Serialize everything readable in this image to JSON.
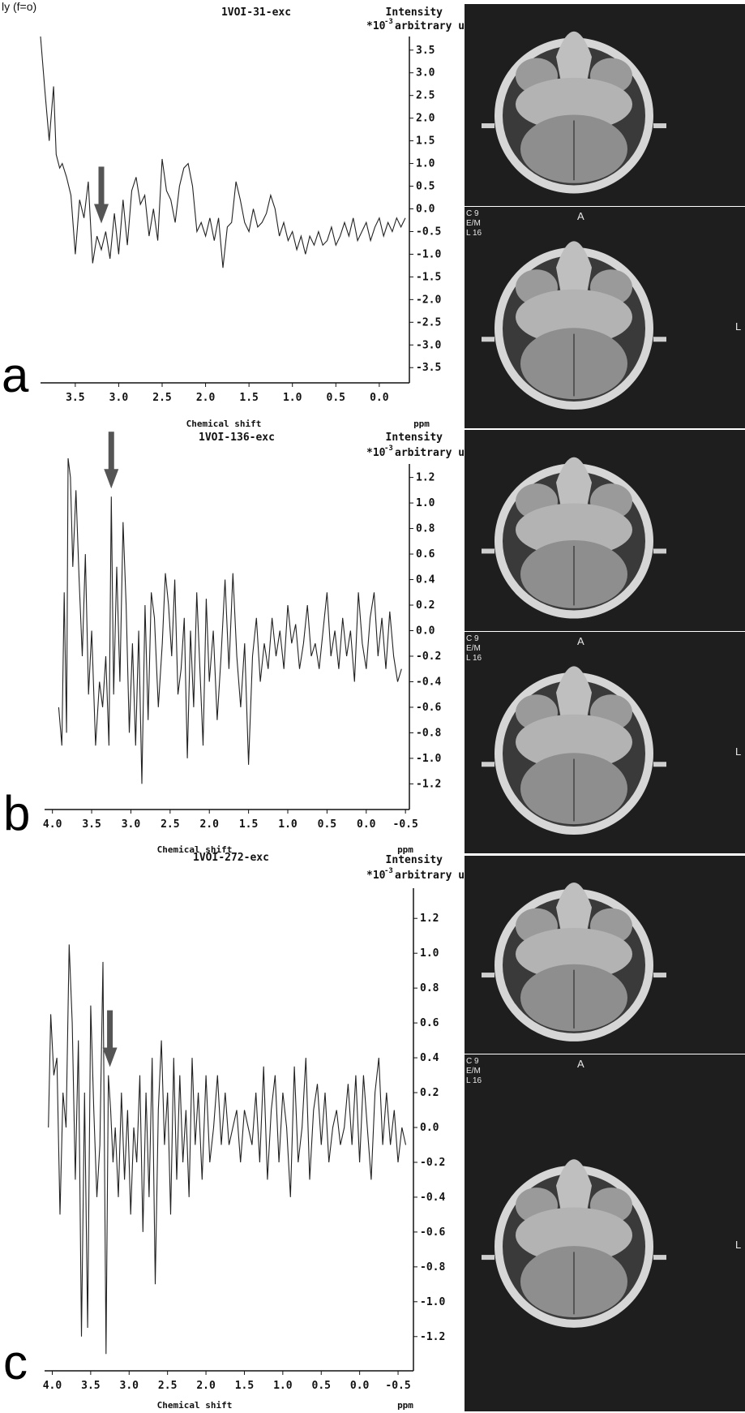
{
  "figure": {
    "header_cut": "ly (f=o)",
    "intensity_label": "Intensity",
    "unit_prefix": "*10",
    "unit_exp": "-3",
    "unit_label": "arbitrary unit",
    "xlabel": "Chemical shift",
    "xunit": "ppm",
    "mri_side_letter": "L",
    "mri_top_letter": "A",
    "mri_overlay_lines": [
      "C 9",
      "E/M",
      "L 16"
    ],
    "accent_color": "#555555",
    "icons": [
      "arrow-down-icon"
    ]
  },
  "chart_data": [
    {
      "type": "line",
      "panel": "a",
      "title": "1VOI-31-exc",
      "xlim": [
        3.9,
        -0.3
      ],
      "ylim": [
        -3.8,
        3.8
      ],
      "x_ticks": [
        "3.5",
        "3.0",
        "2.5",
        "2.0",
        "1.5",
        "1.0",
        "0.5",
        "0.0"
      ],
      "x_tick_values": [
        3.5,
        3.0,
        2.5,
        2.0,
        1.5,
        1.0,
        0.5,
        0.0
      ],
      "y_ticks": [
        "3.5",
        "3.0",
        "2.5",
        "2.0",
        "1.5",
        "1.0",
        "0.5",
        "0.0",
        "-0.5",
        "-1.0",
        "-1.5",
        "-2.0",
        "-2.5",
        "-3.0",
        "-3.5"
      ],
      "y_tick_values": [
        3.5,
        3.0,
        2.5,
        2.0,
        1.5,
        1.0,
        0.5,
        0.0,
        -0.5,
        -1.0,
        -1.5,
        -2.0,
        -2.5,
        -3.0,
        -3.5
      ],
      "arrow_x": 3.2,
      "x": [
        3.9,
        3.85,
        3.8,
        3.75,
        3.72,
        3.68,
        3.65,
        3.6,
        3.55,
        3.5,
        3.45,
        3.4,
        3.35,
        3.3,
        3.25,
        3.2,
        3.15,
        3.1,
        3.05,
        3.0,
        2.95,
        2.9,
        2.85,
        2.8,
        2.75,
        2.7,
        2.65,
        2.6,
        2.55,
        2.5,
        2.45,
        2.4,
        2.35,
        2.3,
        2.25,
        2.2,
        2.15,
        2.1,
        2.05,
        2.0,
        1.95,
        1.9,
        1.85,
        1.8,
        1.75,
        1.7,
        1.65,
        1.6,
        1.55,
        1.5,
        1.45,
        1.4,
        1.35,
        1.3,
        1.25,
        1.2,
        1.15,
        1.1,
        1.05,
        1.0,
        0.95,
        0.9,
        0.85,
        0.8,
        0.75,
        0.7,
        0.65,
        0.6,
        0.55,
        0.5,
        0.45,
        0.4,
        0.35,
        0.3,
        0.25,
        0.2,
        0.15,
        0.1,
        0.05,
        0.0,
        -0.05,
        -0.1,
        -0.15,
        -0.2,
        -0.25,
        -0.3
      ],
      "y": [
        3.8,
        2.6,
        1.5,
        2.7,
        1.2,
        0.9,
        1.0,
        0.7,
        0.3,
        -1.0,
        0.2,
        -0.2,
        0.6,
        -1.2,
        -0.6,
        -0.9,
        -0.5,
        -1.1,
        -0.1,
        -1.0,
        0.2,
        -0.8,
        0.4,
        0.7,
        0.1,
        0.3,
        -0.6,
        0.0,
        -0.7,
        1.1,
        0.4,
        0.2,
        -0.3,
        0.5,
        0.9,
        1.0,
        0.5,
        -0.5,
        -0.3,
        -0.6,
        -0.2,
        -0.7,
        -0.2,
        -1.3,
        -0.4,
        -0.3,
        0.6,
        0.2,
        -0.3,
        -0.5,
        0.0,
        -0.4,
        -0.3,
        -0.1,
        0.3,
        0.0,
        -0.6,
        -0.3,
        -0.7,
        -0.5,
        -0.9,
        -0.6,
        -1.0,
        -0.6,
        -0.8,
        -0.5,
        -0.8,
        -0.7,
        -0.4,
        -0.8,
        -0.6,
        -0.3,
        -0.6,
        -0.2,
        -0.7,
        -0.5,
        -0.3,
        -0.7,
        -0.4,
        -0.2,
        -0.6,
        -0.3,
        -0.5,
        -0.2,
        -0.4,
        -0.2
      ]
    },
    {
      "type": "line",
      "panel": "b",
      "title": "1VOI-136-exc",
      "xlim": [
        4.1,
        -0.55
      ],
      "ylim": [
        -1.35,
        1.35
      ],
      "x_ticks": [
        "4.0",
        "3.5",
        "3.0",
        "2.5",
        "2.0",
        "1.5",
        "1.0",
        "0.5",
        "0.0",
        "-0.5"
      ],
      "x_tick_values": [
        4.0,
        3.5,
        3.0,
        2.5,
        2.0,
        1.5,
        1.0,
        0.5,
        0.0,
        -0.5
      ],
      "y_ticks": [
        "1.2",
        "1.0",
        "0.8",
        "0.6",
        "0.4",
        "0.2",
        "0.0",
        "-0.2",
        "-0.4",
        "-0.6",
        "-0.8",
        "-1.0",
        "-1.2"
      ],
      "y_tick_values": [
        1.2,
        1.0,
        0.8,
        0.6,
        0.4,
        0.2,
        0.0,
        -0.2,
        -0.4,
        -0.6,
        -0.8,
        -1.0,
        -1.2
      ],
      "arrow_x": 3.25,
      "x": [
        3.92,
        3.88,
        3.85,
        3.82,
        3.8,
        3.77,
        3.74,
        3.7,
        3.66,
        3.62,
        3.58,
        3.54,
        3.5,
        3.45,
        3.4,
        3.36,
        3.32,
        3.28,
        3.25,
        3.22,
        3.18,
        3.14,
        3.1,
        3.06,
        3.02,
        2.98,
        2.94,
        2.9,
        2.86,
        2.82,
        2.78,
        2.74,
        2.7,
        2.65,
        2.6,
        2.56,
        2.52,
        2.48,
        2.44,
        2.4,
        2.36,
        2.32,
        2.28,
        2.24,
        2.2,
        2.16,
        2.12,
        2.08,
        2.04,
        2.0,
        1.95,
        1.9,
        1.85,
        1.8,
        1.75,
        1.7,
        1.65,
        1.6,
        1.55,
        1.5,
        1.45,
        1.4,
        1.35,
        1.3,
        1.25,
        1.2,
        1.15,
        1.1,
        1.05,
        1.0,
        0.95,
        0.9,
        0.85,
        0.8,
        0.75,
        0.7,
        0.65,
        0.6,
        0.55,
        0.5,
        0.45,
        0.4,
        0.35,
        0.3,
        0.25,
        0.2,
        0.15,
        0.1,
        0.05,
        0.0,
        -0.05,
        -0.1,
        -0.15,
        -0.2,
        -0.25,
        -0.3,
        -0.35,
        -0.4,
        -0.45
      ],
      "y": [
        -0.6,
        -0.9,
        0.3,
        -0.8,
        1.35,
        1.2,
        0.5,
        1.1,
        0.4,
        -0.2,
        0.6,
        -0.5,
        0.0,
        -0.9,
        -0.4,
        -0.6,
        -0.2,
        -0.9,
        1.05,
        -0.5,
        0.5,
        -0.4,
        0.85,
        0.2,
        -0.8,
        -0.1,
        -0.9,
        0.0,
        -1.2,
        0.2,
        -0.7,
        0.3,
        0.1,
        -0.6,
        -0.1,
        0.45,
        0.2,
        -0.2,
        0.4,
        -0.5,
        -0.3,
        0.1,
        -1.0,
        0.0,
        -0.6,
        0.3,
        -0.3,
        -0.9,
        0.25,
        -0.4,
        0.0,
        -0.7,
        -0.2,
        0.4,
        -0.3,
        0.45,
        -0.2,
        -0.6,
        -0.1,
        -1.05,
        -0.2,
        0.1,
        -0.4,
        -0.1,
        -0.3,
        0.1,
        -0.2,
        0.0,
        -0.3,
        0.2,
        -0.1,
        0.05,
        -0.3,
        -0.1,
        0.2,
        -0.2,
        -0.1,
        -0.3,
        0.0,
        0.3,
        -0.2,
        0.0,
        -0.3,
        0.1,
        -0.2,
        0.0,
        -0.4,
        0.3,
        -0.1,
        -0.3,
        0.1,
        0.3,
        -0.2,
        0.1,
        -0.3,
        0.15,
        -0.2,
        -0.4,
        -0.3
      ]
    },
    {
      "type": "line",
      "panel": "c",
      "title": "1VOI-272-exc",
      "xlim": [
        4.1,
        -0.7
      ],
      "ylim": [
        -1.35,
        1.35
      ],
      "x_ticks": [
        "4.0",
        "3.5",
        "3.0",
        "2.5",
        "2.0",
        "1.5",
        "1.0",
        "0.5",
        "0.0",
        "-0.5"
      ],
      "x_tick_values": [
        4.0,
        3.5,
        3.0,
        2.5,
        2.0,
        1.5,
        1.0,
        0.5,
        0.0,
        -0.5
      ],
      "y_ticks": [
        "1.2",
        "1.0",
        "0.8",
        "0.6",
        "0.4",
        "0.2",
        "0.0",
        "-0.2",
        "-0.4",
        "-0.6",
        "-0.8",
        "-1.0",
        "-1.2"
      ],
      "y_tick_values": [
        1.2,
        1.0,
        0.8,
        0.6,
        0.4,
        0.2,
        0.0,
        -0.2,
        -0.4,
        -0.6,
        -0.8,
        -1.0,
        -1.2
      ],
      "arrow_x": 3.25,
      "x": [
        4.05,
        4.02,
        3.98,
        3.94,
        3.9,
        3.86,
        3.82,
        3.78,
        3.74,
        3.7,
        3.66,
        3.62,
        3.58,
        3.54,
        3.5,
        3.46,
        3.42,
        3.38,
        3.34,
        3.3,
        3.27,
        3.24,
        3.21,
        3.18,
        3.14,
        3.1,
        3.06,
        3.02,
        2.98,
        2.94,
        2.9,
        2.86,
        2.82,
        2.78,
        2.74,
        2.7,
        2.66,
        2.62,
        2.58,
        2.54,
        2.5,
        2.46,
        2.42,
        2.38,
        2.34,
        2.3,
        2.26,
        2.22,
        2.18,
        2.14,
        2.1,
        2.05,
        2.0,
        1.95,
        1.9,
        1.85,
        1.8,
        1.75,
        1.7,
        1.65,
        1.6,
        1.55,
        1.5,
        1.45,
        1.4,
        1.35,
        1.3,
        1.25,
        1.2,
        1.15,
        1.1,
        1.05,
        1.0,
        0.95,
        0.9,
        0.85,
        0.8,
        0.75,
        0.7,
        0.65,
        0.6,
        0.55,
        0.5,
        0.45,
        0.4,
        0.35,
        0.3,
        0.25,
        0.2,
        0.15,
        0.1,
        0.05,
        0.0,
        -0.05,
        -0.1,
        -0.15,
        -0.2,
        -0.25,
        -0.3,
        -0.35,
        -0.4,
        -0.45,
        -0.5,
        -0.55,
        -0.6
      ],
      "y": [
        0.0,
        0.65,
        0.3,
        0.4,
        -0.5,
        0.2,
        0.0,
        1.05,
        0.6,
        -0.3,
        0.5,
        -1.2,
        0.2,
        -1.15,
        0.7,
        0.1,
        -0.4,
        -0.1,
        0.95,
        -1.3,
        0.3,
        0.1,
        -0.2,
        0.0,
        -0.4,
        0.2,
        -0.3,
        0.1,
        -0.5,
        0.0,
        -0.2,
        0.3,
        -0.6,
        0.2,
        -0.4,
        0.4,
        -0.9,
        0.1,
        0.5,
        -0.1,
        0.2,
        -0.5,
        0.4,
        -0.3,
        0.3,
        -0.2,
        0.1,
        -0.4,
        0.4,
        -0.1,
        0.2,
        -0.3,
        0.3,
        -0.2,
        0.0,
        0.3,
        -0.1,
        0.2,
        -0.1,
        0.0,
        0.1,
        -0.2,
        0.1,
        0.0,
        -0.1,
        0.2,
        -0.2,
        0.35,
        -0.3,
        0.1,
        0.3,
        -0.2,
        0.2,
        0.0,
        -0.4,
        0.35,
        -0.2,
        0.0,
        0.4,
        -0.3,
        0.1,
        0.25,
        -0.1,
        0.2,
        -0.2,
        0.0,
        0.1,
        -0.1,
        0.0,
        0.25,
        -0.1,
        0.3,
        -0.2,
        0.3,
        0.0,
        -0.3,
        0.2,
        0.4,
        -0.1,
        0.2,
        -0.1,
        0.1,
        -0.2,
        0.0,
        -0.1
      ]
    }
  ]
}
